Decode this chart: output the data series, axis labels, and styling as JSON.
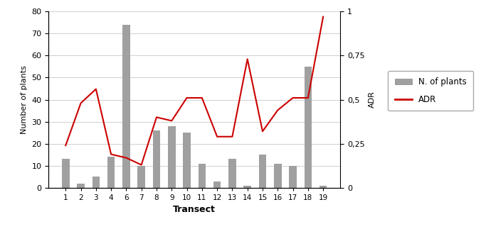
{
  "transects": [
    1,
    2,
    3,
    4,
    6,
    7,
    8,
    9,
    10,
    11,
    12,
    13,
    14,
    15,
    16,
    17,
    18,
    19
  ],
  "n_plants": [
    13,
    2,
    5,
    14,
    74,
    10,
    26,
    28,
    25,
    11,
    3,
    13,
    1,
    15,
    11,
    10,
    55,
    1
  ],
  "adr": [
    0.24,
    0.48,
    0.56,
    0.19,
    0.17,
    0.13,
    0.4,
    0.38,
    0.51,
    0.51,
    0.29,
    0.29,
    0.73,
    0.32,
    0.44,
    0.51,
    0.51,
    0.97
  ],
  "bar_color": "#a0a0a0",
  "line_color": "#cc0000",
  "ylabel_left": "Number of plants",
  "ylabel_right": "ADR",
  "xlabel": "Transect",
  "ylim_left": [
    0,
    80
  ],
  "ylim_right": [
    0,
    1
  ],
  "yticks_left": [
    0,
    10,
    20,
    30,
    40,
    50,
    60,
    70,
    80
  ],
  "yticks_right": [
    0,
    0.25,
    0.5,
    0.75,
    1.0
  ],
  "ytick_labels_right": [
    "0",
    "0,25",
    "0,5",
    "0,75",
    "1"
  ],
  "legend_plants": "N. of plants",
  "legend_adr": "ADR",
  "background_color": "#ffffff",
  "grid_color": "#c8c8c8"
}
